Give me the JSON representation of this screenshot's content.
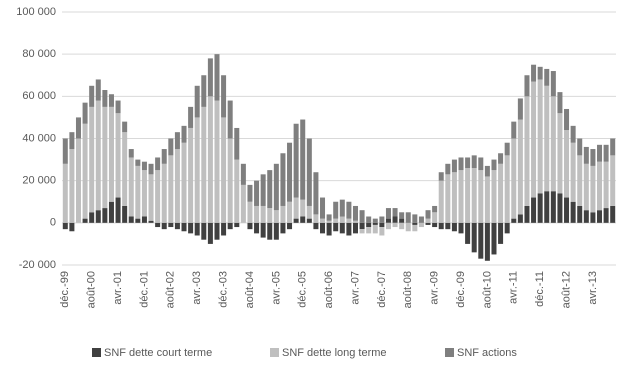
{
  "chart_data": {
    "type": "stacked_bar",
    "categories": [
      "déc.-99",
      null,
      null,
      null,
      "août-00",
      null,
      null,
      null,
      "avr.-01",
      null,
      null,
      null,
      "déc.-01",
      null,
      null,
      null,
      "août-02",
      null,
      null,
      null,
      "avr.-03",
      null,
      null,
      null,
      "déc.-03",
      null,
      null,
      null,
      "août-04",
      null,
      null,
      null,
      "avr.-05",
      null,
      null,
      null,
      "déc.-05",
      null,
      null,
      null,
      "août-06",
      null,
      null,
      null,
      "avr.-07",
      null,
      null,
      null,
      "déc.-07",
      null,
      null,
      null,
      "août-08",
      null,
      null,
      null,
      "avr.-09",
      null,
      null,
      null,
      "déc.-09",
      null,
      null,
      null,
      "août-10",
      null,
      null,
      null,
      "avr.-11",
      null,
      null,
      null,
      "déc.-11",
      null,
      null,
      null,
      "août-12",
      null,
      null,
      null,
      "avr.-13",
      null,
      null,
      null
    ],
    "series": [
      {
        "name": "SNF dette court terme",
        "color": "#404040",
        "values": [
          -3000,
          -4000,
          0,
          2000,
          5000,
          6000,
          7000,
          10000,
          12000,
          8000,
          3000,
          2000,
          3000,
          1000,
          -2000,
          -3000,
          -2000,
          -3000,
          -4000,
          -5000,
          -6000,
          -8000,
          -10000,
          -8000,
          -6000,
          -3000,
          -2000,
          0,
          -3000,
          -5000,
          -7000,
          -8000,
          -8000,
          -5000,
          -3000,
          2000,
          3000,
          2000,
          -3000,
          -5000,
          -6000,
          -4000,
          -5000,
          -6000,
          -5000,
          -3000,
          -2000,
          -1000,
          -2000,
          2000,
          3000,
          2000,
          0,
          -1000,
          0,
          -1000,
          -2000,
          -3000,
          -3000,
          -4000,
          -5000,
          -10000,
          -14000,
          -17000,
          -18000,
          -15000,
          -10000,
          -5000,
          2000,
          4000,
          8000,
          12000,
          14000,
          15000,
          15000,
          14000,
          12000,
          10000,
          8000,
          6000,
          5000,
          6000,
          7000,
          8000
        ]
      },
      {
        "name": "SNF dette long terme",
        "color": "#bfbfbf",
        "values": [
          28000,
          35000,
          40000,
          45000,
          50000,
          52000,
          48000,
          45000,
          40000,
          35000,
          28000,
          25000,
          22000,
          22000,
          25000,
          28000,
          32000,
          35000,
          38000,
          45000,
          50000,
          55000,
          60000,
          58000,
          50000,
          40000,
          30000,
          18000,
          10000,
          8000,
          8000,
          7000,
          6000,
          8000,
          10000,
          10000,
          8000,
          6000,
          4000,
          2000,
          1000,
          2000,
          3000,
          2000,
          1000,
          -2000,
          -3000,
          -4000,
          -4000,
          -3000,
          -2000,
          -3000,
          -4000,
          -3000,
          -2000,
          2000,
          5000,
          20000,
          23000,
          24000,
          25000,
          26000,
          26000,
          25000,
          22000,
          25000,
          28000,
          32000,
          38000,
          45000,
          52000,
          55000,
          54000,
          50000,
          45000,
          38000,
          32000,
          28000,
          24000,
          22000,
          22000,
          23000,
          22000,
          24000
        ]
      },
      {
        "name": "SNF actions",
        "color": "#7f7f7f",
        "values": [
          12000,
          8000,
          10000,
          10000,
          10000,
          10000,
          8000,
          6000,
          6000,
          5000,
          4000,
          3000,
          4000,
          5000,
          6000,
          7000,
          8000,
          8000,
          8000,
          10000,
          15000,
          15000,
          18000,
          22000,
          20000,
          18000,
          15000,
          10000,
          8000,
          12000,
          15000,
          18000,
          22000,
          25000,
          28000,
          35000,
          38000,
          32000,
          20000,
          10000,
          3000,
          8000,
          8000,
          8000,
          7000,
          6000,
          3000,
          2000,
          3000,
          5000,
          4000,
          3000,
          5000,
          4000,
          3000,
          4000,
          3000,
          4000,
          5000,
          6000,
          6000,
          5000,
          6000,
          6000,
          5000,
          5000,
          5000,
          6000,
          8000,
          10000,
          10000,
          8000,
          6000,
          8000,
          12000,
          10000,
          10000,
          8000,
          8000,
          8000,
          8000,
          8000,
          8000,
          8000
        ]
      }
    ],
    "ylim": [
      -20000,
      100000
    ],
    "yticks": [
      {
        "value": -20000,
        "label": "-20 000"
      },
      0,
      {
        "value": 20000,
        "label": "20 000"
      },
      {
        "value": 40000,
        "label": "40 000"
      },
      {
        "value": 60000,
        "label": "60 000"
      },
      {
        "value": 80000,
        "label": "80 000"
      },
      {
        "value": 100000,
        "label": "100 000"
      }
    ],
    "grid": true,
    "legend": "bottom"
  }
}
